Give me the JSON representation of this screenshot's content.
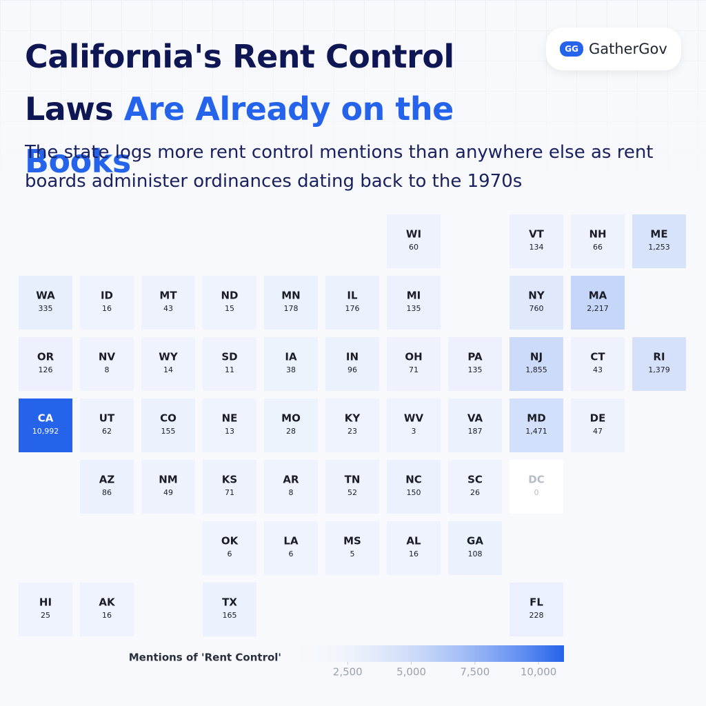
{
  "chart_data": {
    "type": "tilemap",
    "title": "California's Rent Control Laws",
    "title_highlight": "Are Already on the Books",
    "subtitle": "The state logs more rent control mentions than anywhere else as rent boards administer ordinances dating back to the 1970s",
    "brand": "GatherGov",
    "brand_icon": "GG",
    "categories": [
      "WI",
      "VT",
      "NH",
      "ME",
      "WA",
      "ID",
      "MT",
      "ND",
      "MN",
      "IL",
      "MI",
      "NY",
      "MA",
      "OR",
      "NV",
      "WY",
      "SD",
      "IA",
      "IN",
      "OH",
      "PA",
      "NJ",
      "CT",
      "RI",
      "CA",
      "UT",
      "CO",
      "NE",
      "MO",
      "KY",
      "WV",
      "VA",
      "MD",
      "DE",
      "AZ",
      "NM",
      "KS",
      "AR",
      "TN",
      "NC",
      "SC",
      "DC",
      "OK",
      "LA",
      "MS",
      "AL",
      "GA",
      "HI",
      "AK",
      "TX",
      "FL"
    ],
    "values": [
      60,
      134,
      66,
      1253,
      335,
      16,
      43,
      15,
      178,
      176,
      135,
      760,
      2217,
      126,
      8,
      14,
      11,
      38,
      96,
      71,
      135,
      1855,
      43,
      1379,
      10992,
      62,
      155,
      13,
      28,
      23,
      3,
      187,
      1471,
      47,
      86,
      49,
      71,
      8,
      52,
      150,
      26,
      0,
      6,
      6,
      5,
      16,
      108,
      25,
      16,
      165,
      228
    ],
    "value_labels": [
      "60",
      "134",
      "66",
      "1,253",
      "335",
      "16",
      "43",
      "15",
      "178",
      "176",
      "135",
      "760",
      "2,217",
      "126",
      "8",
      "14",
      "11",
      "38",
      "96",
      "71",
      "135",
      "1,855",
      "43",
      "1,379",
      "10,992",
      "62",
      "155",
      "13",
      "28",
      "23",
      "3",
      "187",
      "1,471",
      "47",
      "86",
      "49",
      "71",
      "8",
      "52",
      "150",
      "26",
      "0",
      "6",
      "6",
      "5",
      "16",
      "108",
      "25",
      "16",
      "165",
      "228"
    ],
    "color_low": "#eef3fd",
    "color_high": "#2563eb",
    "colorbar_title": "Mentions of 'Rent Control'",
    "clim": [
      0,
      11000
    ],
    "cticks": [
      {
        "value": 2500,
        "label": "2,500"
      },
      {
        "value": 5000,
        "label": "5,000"
      },
      {
        "value": 7500,
        "label": "7,500"
      },
      {
        "value": 10000,
        "label": "10,000"
      }
    ]
  }
}
